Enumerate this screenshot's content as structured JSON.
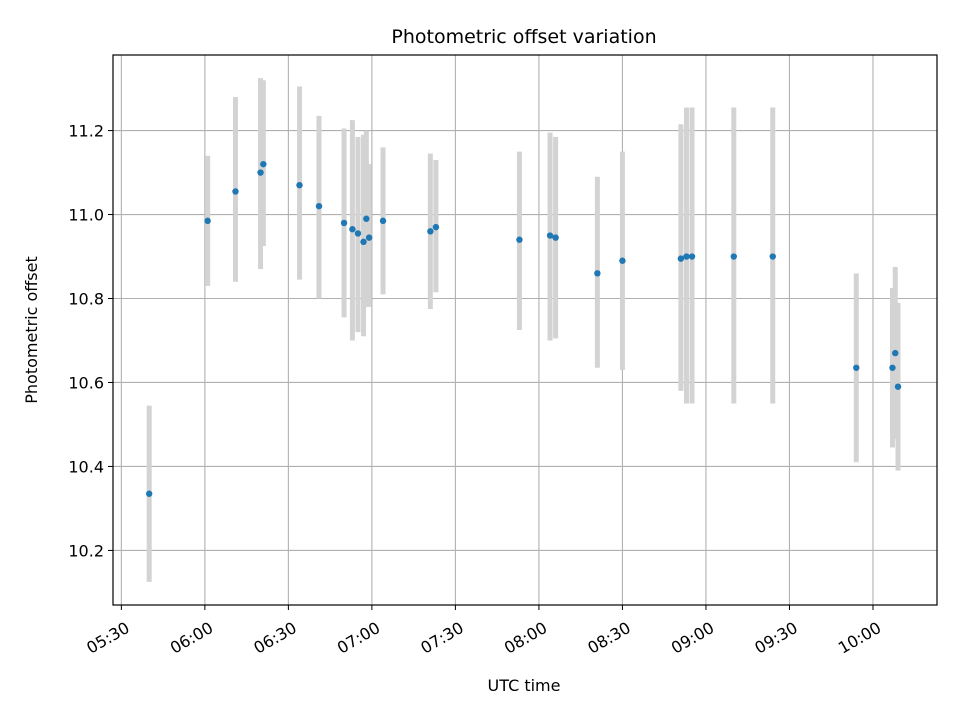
{
  "chart_data": {
    "type": "scatter",
    "title": "Photometric offset variation",
    "xlabel": "UTC time",
    "ylabel": "Photometric offset",
    "x_tick_labels": [
      "05:30",
      "06:00",
      "06:30",
      "07:00",
      "07:30",
      "08:00",
      "08:30",
      "09:00",
      "09:30",
      "10:00"
    ],
    "y_ticks": [
      10.2,
      10.4,
      10.6,
      10.8,
      11.0,
      11.2
    ],
    "y_tick_labels": [
      "10.2",
      "10.4",
      "10.6",
      "10.8",
      "11.0",
      "11.2"
    ],
    "xlim": [
      "05:27",
      "10:23"
    ],
    "ylim": [
      10.07,
      11.38
    ],
    "grid": true,
    "colors": {
      "points": "#1f77b4",
      "errorbars": "#d3d3d3",
      "grid": "#b0b0b0"
    },
    "points": [
      {
        "x": "05:40",
        "y": 10.335,
        "low": 10.125,
        "high": 10.545
      },
      {
        "x": "06:01",
        "y": 10.985,
        "low": 10.83,
        "high": 11.14
      },
      {
        "x": "06:11",
        "y": 11.055,
        "low": 10.84,
        "high": 11.28
      },
      {
        "x": "06:20",
        "y": 11.1,
        "low": 10.87,
        "high": 11.325
      },
      {
        "x": "06:21",
        "y": 11.12,
        "low": 10.925,
        "high": 11.32
      },
      {
        "x": "06:34",
        "y": 11.07,
        "low": 10.845,
        "high": 11.305
      },
      {
        "x": "06:41",
        "y": 11.02,
        "low": 10.8,
        "high": 11.235
      },
      {
        "x": "06:50",
        "y": 10.98,
        "low": 10.755,
        "high": 11.205
      },
      {
        "x": "06:53",
        "y": 10.965,
        "low": 10.7,
        "high": 11.225
      },
      {
        "x": "06:55",
        "y": 10.955,
        "low": 10.72,
        "high": 11.185
      },
      {
        "x": "06:57",
        "y": 10.935,
        "low": 10.71,
        "high": 11.19
      },
      {
        "x": "06:58",
        "y": 10.99,
        "low": 10.78,
        "high": 11.2
      },
      {
        "x": "06:59",
        "y": 10.945,
        "low": 10.78,
        "high": 11.12
      },
      {
        "x": "07:04",
        "y": 10.985,
        "low": 10.81,
        "high": 11.16
      },
      {
        "x": "07:21",
        "y": 10.96,
        "low": 10.775,
        "high": 11.145
      },
      {
        "x": "07:23",
        "y": 10.97,
        "low": 10.815,
        "high": 11.13
      },
      {
        "x": "07:53",
        "y": 10.94,
        "low": 10.725,
        "high": 11.15
      },
      {
        "x": "08:04",
        "y": 10.95,
        "low": 10.7,
        "high": 11.195
      },
      {
        "x": "08:06",
        "y": 10.945,
        "low": 10.705,
        "high": 11.185
      },
      {
        "x": "08:21",
        "y": 10.86,
        "low": 10.635,
        "high": 11.09
      },
      {
        "x": "08:30",
        "y": 10.89,
        "low": 10.63,
        "high": 11.15
      },
      {
        "x": "08:51",
        "y": 10.895,
        "low": 10.58,
        "high": 11.215
      },
      {
        "x": "08:53",
        "y": 10.9,
        "low": 10.55,
        "high": 11.255
      },
      {
        "x": "08:55",
        "y": 10.9,
        "low": 10.55,
        "high": 11.255
      },
      {
        "x": "09:10",
        "y": 10.9,
        "low": 10.55,
        "high": 11.255
      },
      {
        "x": "09:24",
        "y": 10.9,
        "low": 10.55,
        "high": 11.255
      },
      {
        "x": "09:54",
        "y": 10.635,
        "low": 10.41,
        "high": 10.86
      },
      {
        "x": "10:07",
        "y": 10.635,
        "low": 10.445,
        "high": 10.825
      },
      {
        "x": "10:08",
        "y": 10.67,
        "low": 10.465,
        "high": 10.875
      },
      {
        "x": "10:09",
        "y": 10.59,
        "low": 10.39,
        "high": 10.79
      }
    ]
  }
}
